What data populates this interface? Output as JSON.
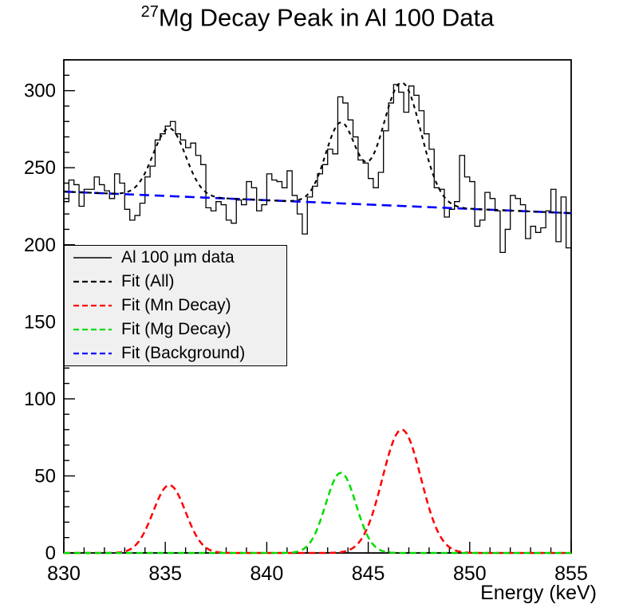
{
  "title": {
    "superscript": "27",
    "text": "Mg Decay Peak in Al 100 Data"
  },
  "chart_data": {
    "type": "histogram_with_fits",
    "x_axis": {
      "label": "Energy (keV)",
      "min": 830,
      "max": 855,
      "major_tick_step": 5,
      "minor_tick_step": 1,
      "tick_labels": [
        "830",
        "835",
        "840",
        "845",
        "850",
        "855"
      ]
    },
    "y_axis": {
      "label": "",
      "min": 0,
      "max": 320,
      "major_tick_step": 50,
      "minor_tick_step": 10,
      "tick_labels": [
        "0",
        "50",
        "100",
        "150",
        "200",
        "250",
        "300"
      ]
    },
    "histogram": {
      "name": "Al 100 µm data",
      "color": "#000000",
      "bin_start": 830,
      "bin_width": 0.25,
      "counts": [
        228,
        242,
        239,
        225,
        236,
        236,
        244,
        239,
        235,
        230,
        246,
        240,
        223,
        216,
        219,
        227,
        244,
        251,
        268,
        272,
        277,
        280,
        272,
        268,
        263,
        266,
        258,
        252,
        224,
        222,
        228,
        226,
        216,
        214,
        229,
        226,
        241,
        237,
        222,
        226,
        246,
        242,
        241,
        237,
        248,
        232,
        220,
        207,
        231,
        238,
        246,
        252,
        262,
        259,
        296,
        292,
        281,
        270,
        255,
        253,
        243,
        237,
        247,
        274,
        292,
        304,
        299,
        286,
        303,
        297,
        287,
        272,
        262,
        237,
        236,
        218,
        223,
        228,
        258,
        244,
        241,
        212,
        216,
        234,
        230,
        222,
        195,
        210,
        232,
        230,
        226,
        204,
        212,
        208,
        211,
        222,
        236,
        202,
        231,
        198
      ]
    },
    "fits": {
      "background": {
        "name": "Fit (Background)",
        "color": "#0000ff",
        "type": "linear",
        "value_at_830": 234.5,
        "value_at_855": 220.5
      },
      "mn_decay": {
        "name": "Fit (Mn Decay)",
        "color": "#ff0000",
        "type": "gaussians",
        "peaks": [
          {
            "mean": 835.2,
            "amplitude": 44,
            "sigma": 0.8
          },
          {
            "mean": 846.65,
            "amplitude": 80,
            "sigma": 0.95
          }
        ]
      },
      "mg_decay": {
        "name": "Fit (Mg Decay)",
        "color": "#00dd00",
        "type": "gaussians",
        "peaks": [
          {
            "mean": 843.65,
            "amplitude": 52,
            "sigma": 0.75
          }
        ]
      },
      "all": {
        "name": "Fit (All)",
        "color": "#000000",
        "type": "background_plus_all_peaks"
      }
    }
  },
  "legend": {
    "entries": [
      {
        "label": "Al 100 µm data",
        "color": "#000000",
        "style": "solid"
      },
      {
        "label": "Fit (All)",
        "color": "#000000",
        "style": "dashed"
      },
      {
        "label": "Fit (Mn Decay)",
        "color": "#ff0000",
        "style": "dashed"
      },
      {
        "label": "Fit (Mg Decay)",
        "color": "#00dd00",
        "style": "dashed"
      },
      {
        "label": "Fit (Background)",
        "color": "#0000ff",
        "style": "dashed"
      }
    ]
  }
}
